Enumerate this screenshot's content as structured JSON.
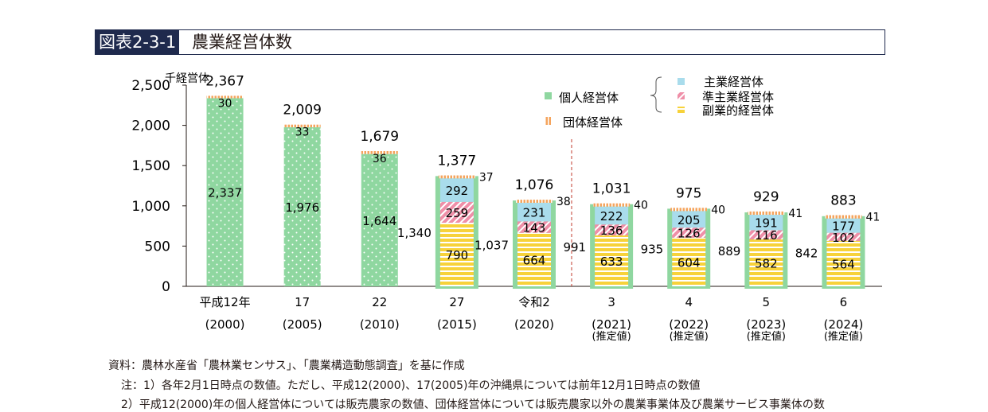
{
  "figure": {
    "id": "図表2-3-1",
    "title": "農業経営体数"
  },
  "footnotes": {
    "source": "資料：農林水産省「農林業センサス」、「農業構造動態調査」を基に作成",
    "note1": "注：1）各年2月1日時点の数値。ただし、平成12(2000)、17(2005)年の沖縄県については前年12月1日時点の数値",
    "note2": "2）平成12(2000)年の個人経営体については販売農家の数値、団体経営体については販売農家以外の農業事業体及び農業サービス事業体の数"
  },
  "colors": {
    "kojin": "#8fd7a0",
    "dantai": "#f5a45d",
    "shugyo": "#a9dcec",
    "junshugyo": "#ef8fa8",
    "fukugyo": "#f7d23a",
    "estimate_frame": "#8fd7a0",
    "divider": "#c0392b"
  },
  "chart_data": {
    "type": "bar",
    "stacked": true,
    "unit_label": "千経営体",
    "ylim": [
      0,
      2500
    ],
    "yticks": [
      0,
      500,
      1000,
      1500,
      2000,
      2500
    ],
    "ytick_labels": [
      "0",
      "500",
      "1,000",
      "1,500",
      "2,000",
      "2,500"
    ],
    "grid": false,
    "categories": [
      {
        "top": "平成12年",
        "bottom": "(2000)",
        "note": ""
      },
      {
        "top": "17",
        "bottom": "(2005)",
        "note": ""
      },
      {
        "top": "22",
        "bottom": "(2010)",
        "note": ""
      },
      {
        "top": "27",
        "bottom": "(2015)",
        "note": ""
      },
      {
        "top": "令和2",
        "bottom": "(2020)",
        "note": ""
      },
      {
        "top": "3",
        "bottom": "(2021)",
        "note": "(推定値)"
      },
      {
        "top": "4",
        "bottom": "(2022)",
        "note": "(推定値)"
      },
      {
        "top": "5",
        "bottom": "(2023)",
        "note": "(推定値)"
      },
      {
        "top": "6",
        "bottom": "(2024)",
        "note": "(推定値)"
      }
    ],
    "series": [
      {
        "name": "個人経営体",
        "key": "kojin",
        "values": [
          2337,
          1976,
          1644,
          null,
          null,
          null,
          null,
          null,
          null
        ]
      },
      {
        "name": "副業的経営体",
        "key": "fukugyo",
        "values": [
          null,
          null,
          null,
          790,
          664,
          633,
          604,
          582,
          564
        ]
      },
      {
        "name": "準主業経営体",
        "key": "junshugyo",
        "values": [
          null,
          null,
          null,
          259,
          143,
          136,
          126,
          116,
          102
        ]
      },
      {
        "name": "主業経営体",
        "key": "shugyo",
        "values": [
          null,
          null,
          null,
          292,
          231,
          222,
          205,
          191,
          177
        ]
      },
      {
        "name": "団体経営体",
        "key": "dantai",
        "values": [
          30,
          33,
          36,
          37,
          38,
          40,
          40,
          41,
          41
        ]
      }
    ],
    "kojin_totals": [
      null,
      null,
      null,
      1340,
      1037,
      991,
      935,
      889,
      842
    ],
    "totals": [
      2367,
      2009,
      1679,
      1377,
      1076,
      1031,
      975,
      929,
      883
    ],
    "value_labels": {
      "totals": [
        "2,367",
        "2,009",
        "1,679",
        "1,377",
        "1,076",
        "1,031",
        "975",
        "929",
        "883"
      ],
      "kojin_totals": [
        "",
        "",
        "",
        "1,340",
        "1,037",
        "991",
        "935",
        "889",
        "842"
      ],
      "kojin": [
        "2,337",
        "1,976",
        "1,644",
        "",
        "",
        "",
        "",
        "",
        ""
      ]
    },
    "legend": {
      "kojin": "個人経営体",
      "dantai": "団体経営体",
      "shugyo": "主業経営体",
      "junshugyo": "準主業経営体",
      "fukugyo": "副業的経営体"
    }
  }
}
